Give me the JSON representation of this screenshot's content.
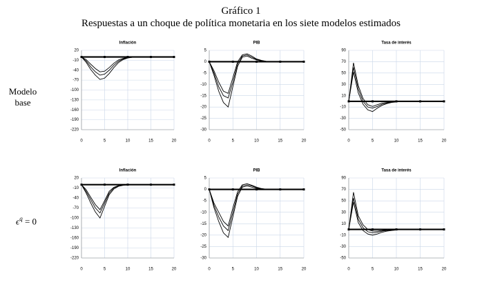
{
  "title": "Gráfico 1",
  "subtitle": "Respuestas a un choque de política monetaria en los siete modelos estimados",
  "row_labels": [
    {
      "text": "Modelo base"
    },
    {
      "symbol": "ϵ",
      "superscript": "q",
      "rest": "= 0"
    }
  ],
  "chart_data": [
    {
      "type": "line",
      "title": "Inflación",
      "x": [
        0,
        1,
        2,
        3,
        4,
        5,
        6,
        7,
        8,
        9,
        10,
        11,
        12,
        13,
        14,
        15,
        16,
        17,
        18,
        19,
        20
      ],
      "xlim": [
        0,
        20
      ],
      "xticks": [
        0,
        5,
        10,
        15,
        20
      ],
      "ylim": [
        -220,
        20
      ],
      "yticks": [
        20,
        -10,
        -40,
        -70,
        -100,
        -130,
        -160,
        -190,
        -220
      ],
      "grid": true,
      "series": [
        {
          "color": "#000000",
          "values": [
            0,
            -12,
            -30,
            -45,
            -55,
            -52,
            -40,
            -25,
            -13,
            -6,
            -2,
            -1,
            0,
            0,
            0,
            0,
            0,
            0,
            0,
            0,
            0
          ]
        },
        {
          "color": "#000000",
          "values": [
            0,
            -8,
            -22,
            -35,
            -45,
            -43,
            -32,
            -19,
            -9,
            -4,
            -1,
            0,
            0,
            0,
            0,
            0,
            0,
            0,
            0,
            0,
            0
          ]
        },
        {
          "color": "#000000",
          "values": [
            0,
            -16,
            -38,
            -55,
            -68,
            -64,
            -50,
            -32,
            -17,
            -8,
            -3,
            -1,
            0,
            0,
            0,
            0,
            0,
            0,
            0,
            0,
            0
          ]
        }
      ]
    },
    {
      "type": "line",
      "title": "PIB",
      "x": [
        0,
        1,
        2,
        3,
        4,
        5,
        6,
        7,
        8,
        9,
        10,
        11,
        12,
        13,
        14,
        15,
        16,
        17,
        18,
        19,
        20
      ],
      "xlim": [
        0,
        20
      ],
      "xticks": [
        0,
        5,
        10,
        15,
        20
      ],
      "ylim": [
        -30,
        5
      ],
      "yticks": [
        5,
        0,
        -5,
        -10,
        -15,
        -20,
        -25,
        -30
      ],
      "grid": true,
      "series": [
        {
          "color": "#000000",
          "values": [
            0,
            -5,
            -11,
            -15,
            -16,
            -9,
            -1,
            2.5,
            3,
            2,
            1,
            0.5,
            0.2,
            0,
            0,
            0,
            0,
            0,
            0,
            0,
            0
          ]
        },
        {
          "color": "#000000",
          "values": [
            0,
            -4,
            -9,
            -13,
            -14,
            -7,
            0,
            3,
            3.5,
            2.5,
            1.2,
            0.6,
            0.2,
            0,
            0,
            0,
            0,
            0,
            0,
            0,
            0
          ]
        },
        {
          "color": "#000000",
          "values": [
            0,
            -6,
            -13,
            -18,
            -20,
            -11,
            -2,
            2,
            2.5,
            1.5,
            0.8,
            0.3,
            0,
            0,
            0,
            0,
            0,
            0,
            0,
            0,
            0
          ]
        }
      ]
    },
    {
      "type": "line",
      "title": "Tasa de interés",
      "x": [
        0,
        1,
        2,
        3,
        4,
        5,
        6,
        7,
        8,
        9,
        10,
        11,
        12,
        13,
        14,
        15,
        16,
        17,
        18,
        19,
        20
      ],
      "xlim": [
        0,
        20
      ],
      "xticks": [
        0,
        5,
        10,
        15,
        20
      ],
      "ylim": [
        -50,
        90
      ],
      "yticks": [
        90,
        70,
        50,
        30,
        10,
        -10,
        -30,
        -50
      ],
      "grid": true,
      "series": [
        {
          "color": "#000000",
          "values": [
            0,
            60,
            22,
            0,
            -10,
            -12,
            -9,
            -5,
            -3,
            -1,
            0,
            0,
            0,
            0,
            0,
            0,
            0,
            0,
            0,
            0,
            0
          ]
        },
        {
          "color": "#000000",
          "values": [
            0,
            68,
            28,
            5,
            -6,
            -9,
            -6,
            -3,
            -2,
            -1,
            0,
            0,
            0,
            0,
            0,
            0,
            0,
            0,
            0,
            0,
            0
          ]
        },
        {
          "color": "#000000",
          "values": [
            0,
            52,
            15,
            -5,
            -15,
            -18,
            -12,
            -7,
            -4,
            -2,
            -1,
            0,
            0,
            0,
            0,
            0,
            0,
            0,
            0,
            0,
            0
          ]
        }
      ]
    },
    {
      "type": "line",
      "title": "Inflación",
      "x": [
        0,
        1,
        2,
        3,
        4,
        5,
        6,
        7,
        8,
        9,
        10,
        11,
        12,
        13,
        14,
        15,
        16,
        17,
        18,
        19,
        20
      ],
      "xlim": [
        0,
        20
      ],
      "xticks": [
        0,
        5,
        10,
        15,
        20
      ],
      "ylim": [
        -220,
        20
      ],
      "yticks": [
        20,
        -10,
        -40,
        -70,
        -100,
        -130,
        -160,
        -190,
        -220
      ],
      "grid": true,
      "series": [
        {
          "color": "#000000",
          "values": [
            0,
            -20,
            -45,
            -70,
            -85,
            -55,
            -25,
            -10,
            -4,
            -1,
            0,
            0,
            0,
            0,
            0,
            0,
            0,
            0,
            0,
            0,
            0
          ]
        },
        {
          "color": "#000000",
          "values": [
            0,
            -15,
            -38,
            -60,
            -75,
            -48,
            -20,
            -8,
            -3,
            -1,
            0,
            0,
            0,
            0,
            0,
            0,
            0,
            0,
            0,
            0,
            0
          ]
        },
        {
          "color": "#000000",
          "values": [
            0,
            -25,
            -55,
            -82,
            -100,
            -65,
            -30,
            -13,
            -5,
            -2,
            -1,
            0,
            0,
            0,
            0,
            0,
            0,
            0,
            0,
            0,
            0
          ]
        }
      ]
    },
    {
      "type": "line",
      "title": "PIB",
      "x": [
        0,
        1,
        2,
        3,
        4,
        5,
        6,
        7,
        8,
        9,
        10,
        11,
        12,
        13,
        14,
        15,
        16,
        17,
        18,
        19,
        20
      ],
      "xlim": [
        0,
        20
      ],
      "xticks": [
        0,
        5,
        10,
        15,
        20
      ],
      "ylim": [
        -30,
        5
      ],
      "yticks": [
        5,
        0,
        -5,
        -10,
        -15,
        -20,
        -25,
        -30
      ],
      "grid": true,
      "series": [
        {
          "color": "#000000",
          "values": [
            0,
            -7,
            -12,
            -16,
            -18,
            -10,
            -2,
            1.5,
            2,
            1.5,
            0.8,
            0.3,
            0.1,
            0,
            0,
            0,
            0,
            0,
            0,
            0,
            0
          ]
        },
        {
          "color": "#000000",
          "values": [
            0,
            -6,
            -10,
            -14,
            -16,
            -8,
            -1,
            2,
            2.5,
            1.8,
            1,
            0.4,
            0.1,
            0,
            0,
            0,
            0,
            0,
            0,
            0,
            0
          ]
        },
        {
          "color": "#000000",
          "values": [
            0,
            -8,
            -14,
            -19,
            -21,
            -12,
            -3,
            1,
            1.5,
            1,
            0.5,
            0.2,
            0,
            0,
            0,
            0,
            0,
            0,
            0,
            0,
            0
          ]
        }
      ]
    },
    {
      "type": "line",
      "title": "Tasa de interés",
      "x": [
        0,
        1,
        2,
        3,
        4,
        5,
        6,
        7,
        8,
        9,
        10,
        11,
        12,
        13,
        14,
        15,
        16,
        17,
        18,
        19,
        20
      ],
      "xlim": [
        0,
        20
      ],
      "xticks": [
        0,
        5,
        10,
        15,
        20
      ],
      "ylim": [
        -50,
        90
      ],
      "yticks": [
        90,
        70,
        50,
        30,
        10,
        -10,
        -30,
        -50
      ],
      "grid": true,
      "series": [
        {
          "color": "#000000",
          "values": [
            0,
            55,
            18,
            3,
            -4,
            -6,
            -5,
            -3,
            -2,
            -1,
            0,
            0,
            0,
            0,
            0,
            0,
            0,
            0,
            0,
            0,
            0
          ]
        },
        {
          "color": "#000000",
          "values": [
            0,
            65,
            24,
            8,
            0,
            -3,
            -3,
            -2,
            -1,
            0,
            0,
            0,
            0,
            0,
            0,
            0,
            0,
            0,
            0,
            0,
            0
          ]
        },
        {
          "color": "#000000",
          "values": [
            0,
            48,
            12,
            -2,
            -8,
            -10,
            -8,
            -5,
            -3,
            -2,
            -1,
            0,
            0,
            0,
            0,
            0,
            0,
            0,
            0,
            0,
            0
          ]
        }
      ]
    }
  ]
}
